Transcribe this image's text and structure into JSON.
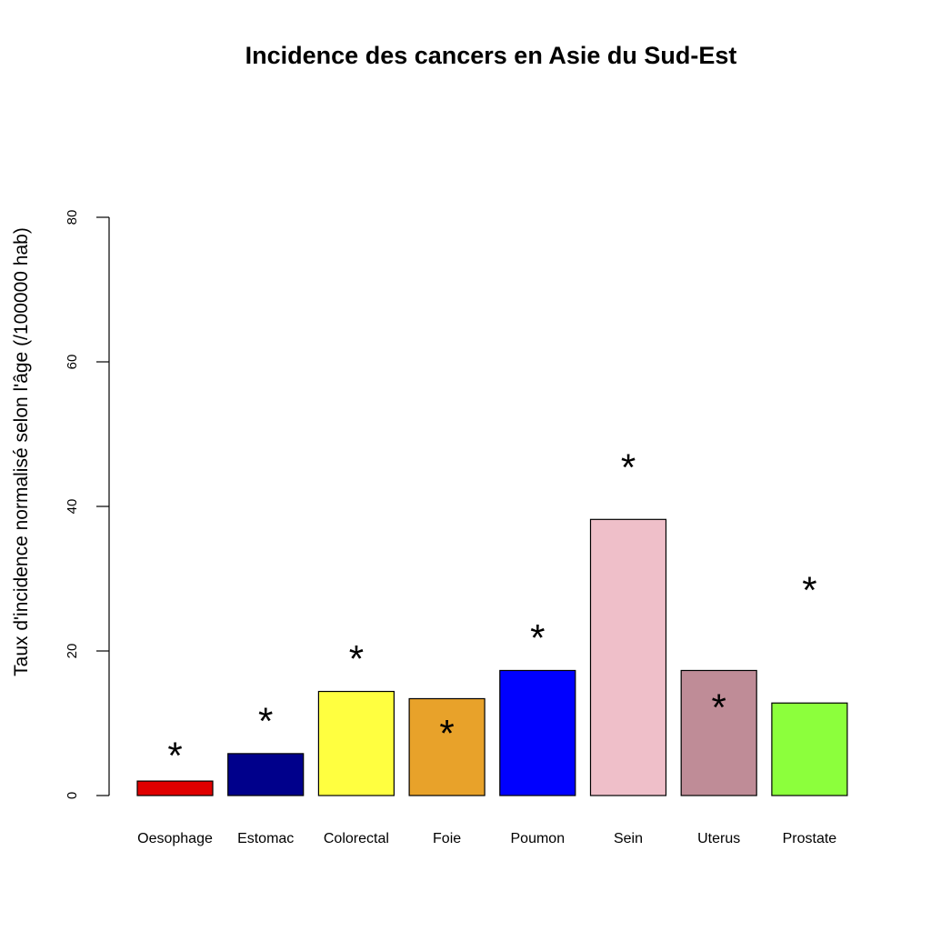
{
  "chart_data": {
    "type": "bar",
    "title": "Incidence des cancers en Asie du Sud-Est",
    "xlabel": "",
    "ylabel": "Taux d'incidence normalisé selon l'âge (/100000 hab)",
    "ylim": [
      0,
      80
    ],
    "yticks": [
      "0",
      "20",
      "40",
      "60",
      "80"
    ],
    "grid": false,
    "categories": [
      "Oesophage",
      "Estomac",
      "Colorectal",
      "Foie",
      "Poumon",
      "Sein",
      "Uterus",
      "Prostate"
    ],
    "values": [
      2.0,
      5.8,
      14.4,
      13.4,
      17.3,
      38.2,
      17.3,
      12.8
    ],
    "colors": [
      "#e00000",
      "#00008b",
      "#ffff40",
      "#e8a22a",
      "#0000ff",
      "#efbfc9",
      "#bf8c97",
      "#8cff3c"
    ],
    "markers": {
      "symbol": "*",
      "values": [
        6.2,
        11.0,
        19.6,
        9.3,
        22.5,
        46.1,
        12.9,
        29.1
      ]
    }
  }
}
